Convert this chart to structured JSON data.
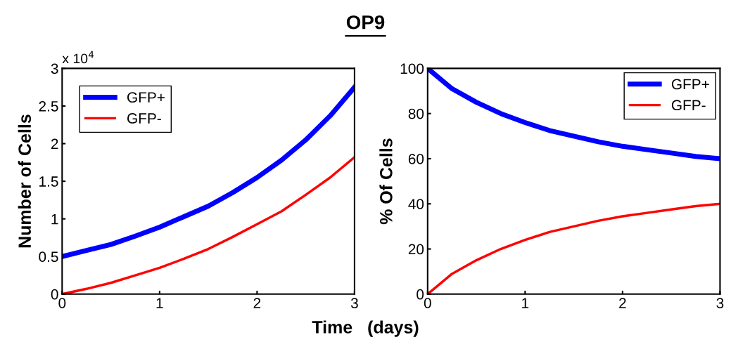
{
  "chart_data": [
    {
      "type": "line",
      "title": "OP9",
      "xlabel": "Time   (days)",
      "ylabel": "Number of Cells",
      "annotations": [
        "x 10$^{4}$"
      ],
      "x": [
        0,
        0.25,
        0.5,
        0.75,
        1,
        1.25,
        1.5,
        1.75,
        2,
        2.25,
        2.5,
        2.75,
        3
      ],
      "series": [
        {
          "name": "GFP+",
          "color": "#0000ff",
          "values": [
            0.5,
            0.58,
            0.66,
            0.77,
            0.89,
            1.03,
            1.17,
            1.35,
            1.55,
            1.78,
            2.05,
            2.37,
            2.75
          ]
        },
        {
          "name": "GFP-",
          "color": "#ff0000",
          "values": [
            0,
            0.07,
            0.15,
            0.25,
            0.35,
            0.47,
            0.6,
            0.76,
            0.93,
            1.1,
            1.32,
            1.55,
            1.82
          ]
        }
      ],
      "xlim": [
        0,
        3
      ],
      "xticks": [
        0,
        1,
        2,
        3
      ],
      "ylim": [
        0,
        3
      ],
      "yticks": [
        0,
        0.5,
        1,
        1.5,
        2,
        2.5,
        3
      ],
      "legend": "top left"
    },
    {
      "type": "line",
      "ylabel": "% Of Cells",
      "x": [
        0,
        0.25,
        0.5,
        0.75,
        1,
        1.25,
        1.5,
        1.75,
        2,
        2.25,
        2.5,
        2.75,
        3
      ],
      "series": [
        {
          "name": "GFP+",
          "color": "#0000ff",
          "values": [
            100,
            91,
            85,
            80,
            76,
            72.5,
            70,
            67.5,
            65.5,
            64,
            62.5,
            61,
            60
          ]
        },
        {
          "name": "GFP-",
          "color": "#ff0000",
          "values": [
            0,
            9,
            15,
            20,
            24,
            27.5,
            30,
            32.5,
            34.5,
            36,
            37.5,
            39,
            40
          ]
        }
      ],
      "xlim": [
        0,
        3
      ],
      "xticks": [
        0,
        1,
        2,
        3
      ],
      "ylim": [
        0,
        100
      ],
      "yticks": [
        0,
        20,
        40,
        60,
        80,
        100
      ],
      "legend": "top right"
    }
  ]
}
